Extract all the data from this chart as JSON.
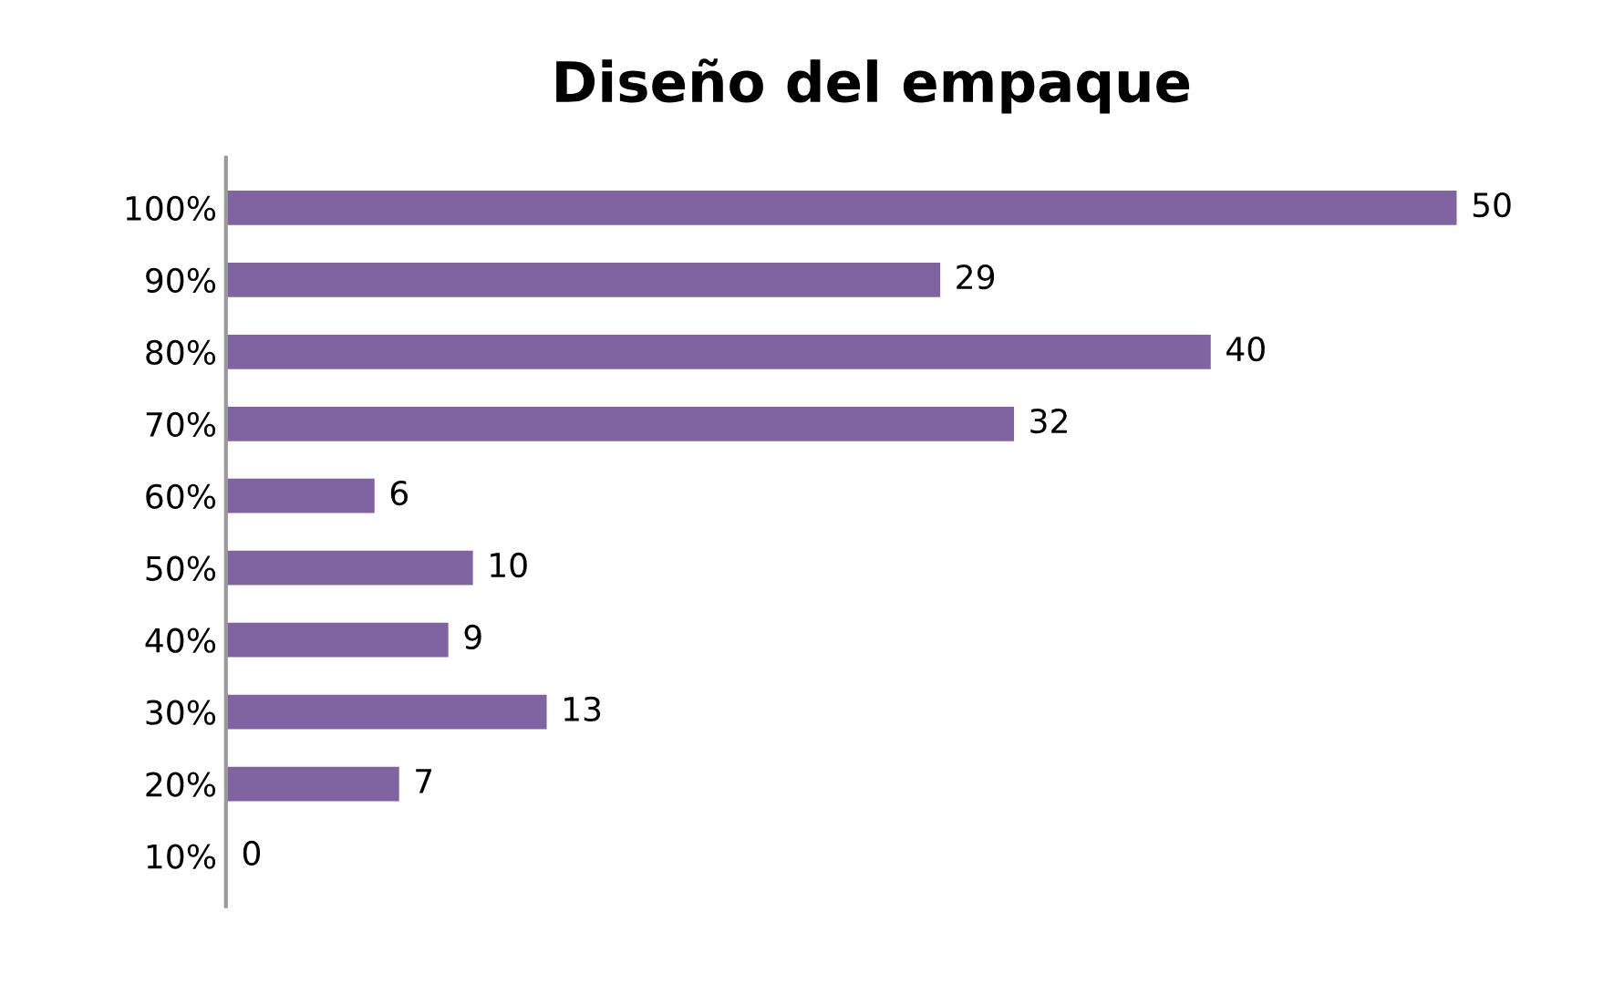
{
  "chart_data": {
    "type": "bar",
    "title": "Diseño del empaque",
    "orientation": "horizontal",
    "categories": [
      "100%",
      "90%",
      "80%",
      "70%",
      "60%",
      "50%",
      "40%",
      "30%",
      "20%",
      "10%"
    ],
    "values": [
      50,
      29,
      40,
      32,
      6,
      10,
      9,
      13,
      7,
      0
    ],
    "color": "#8064a2",
    "data_labels": true,
    "grid": false,
    "legend": false
  }
}
